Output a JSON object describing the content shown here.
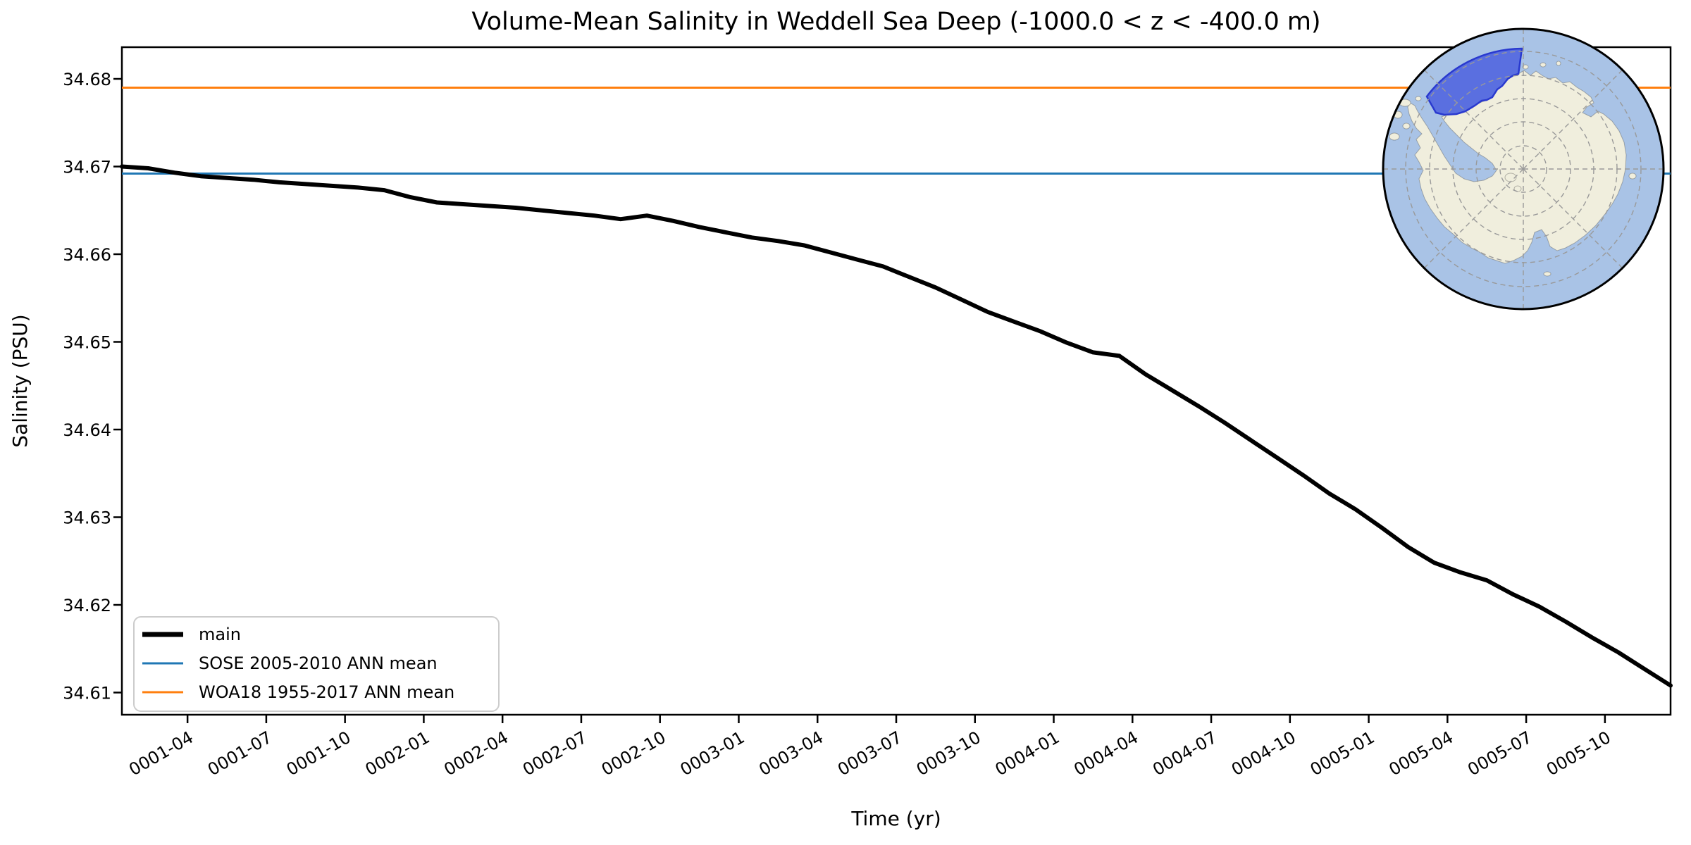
{
  "title": "Volume-Mean Salinity in Weddell Sea Deep (-1000.0 < z < -400.0 m)",
  "axes": {
    "xlabel": "Time (yr)",
    "ylabel": "Salinity (PSU)"
  },
  "legend": {
    "entries": [
      {
        "label": "main",
        "color": "#000000",
        "width": 7
      },
      {
        "label": "SOSE 2005-2010 ANN mean",
        "color": "#1f77b4",
        "width": 3
      },
      {
        "label": "WOA18 1955-2017 ANN mean",
        "color": "#ff7f0e",
        "width": 3
      }
    ]
  },
  "inset_map": {
    "ocean_color": "#a9c3e6",
    "land_color": "#f0eedd",
    "region_fill": "#4457de",
    "region_edge": "#2939cf",
    "region_opacity": 0.78
  },
  "chart_data": {
    "type": "line",
    "title": "Volume-Mean Salinity in Weddell Sea Deep (-1000.0 < z < -400.0 m)",
    "xlabel": "Time (yr)",
    "ylabel": "Salinity (PSU)",
    "grid": false,
    "legend_position": "lower left",
    "ylim": [
      34.6075,
      34.6836
    ],
    "y_tick_values": [
      34.68,
      34.67,
      34.66,
      34.65,
      34.64,
      34.63,
      34.62,
      34.61
    ],
    "x_tick_labels": [
      "0001-04",
      "0001-07",
      "0001-10",
      "0002-01",
      "0002-04",
      "0002-07",
      "0002-10",
      "0003-01",
      "0003-04",
      "0003-07",
      "0003-10",
      "0004-01",
      "0004-04",
      "0004-07",
      "0004-10",
      "0005-01",
      "0005-04",
      "0005-07",
      "0005-10"
    ],
    "x": [
      "0001-01",
      "0001-02",
      "0001-03",
      "0001-04",
      "0001-05",
      "0001-06",
      "0001-07",
      "0001-08",
      "0001-09",
      "0001-10",
      "0001-11",
      "0001-12",
      "0002-01",
      "0002-02",
      "0002-03",
      "0002-04",
      "0002-05",
      "0002-06",
      "0002-07",
      "0002-08",
      "0002-09",
      "0002-10",
      "0002-11",
      "0002-12",
      "0003-01",
      "0003-02",
      "0003-03",
      "0003-04",
      "0003-05",
      "0003-06",
      "0003-07",
      "0003-08",
      "0003-09",
      "0003-10",
      "0003-11",
      "0003-12",
      "0004-01",
      "0004-02",
      "0004-03",
      "0004-04",
      "0004-05",
      "0004-06",
      "0004-07",
      "0004-08",
      "0004-09",
      "0004-10",
      "0004-11",
      "0004-12",
      "0005-01",
      "0005-02",
      "0005-03",
      "0005-04",
      "0005-05",
      "0005-06",
      "0005-07",
      "0005-08",
      "0005-09",
      "0005-10",
      "0005-11",
      "0005-12"
    ],
    "series": [
      {
        "name": "main",
        "color": "#000000",
        "line_width": 6,
        "values": [
          34.67,
          34.6698,
          34.6693,
          34.6689,
          34.6687,
          34.6685,
          34.6682,
          34.668,
          34.6678,
          34.6676,
          34.6673,
          34.6665,
          34.6659,
          34.6657,
          34.6655,
          34.6653,
          34.665,
          34.6647,
          34.6644,
          34.664,
          34.6644,
          34.6638,
          34.6631,
          34.6625,
          34.6619,
          34.6615,
          34.661,
          34.6602,
          34.6594,
          34.6586,
          34.6574,
          34.6562,
          34.6548,
          34.6534,
          34.6523,
          34.6512,
          34.6499,
          34.6488,
          34.6484,
          34.6463,
          34.6445,
          34.6427,
          34.6408,
          34.6388,
          34.6368,
          34.6348,
          34.6327,
          34.6309,
          34.6288,
          34.6266,
          34.6248,
          34.6237,
          34.6228,
          34.6212,
          34.6198,
          34.6181,
          34.6163,
          34.6146,
          34.6127,
          34.6108
        ]
      }
    ],
    "ref_lines": [
      {
        "name": "SOSE 2005-2010 ANN mean",
        "value": 34.6692,
        "color": "#1f77b4",
        "line_width": 3
      },
      {
        "name": "WOA18 1955-2017 ANN mean",
        "value": 34.679,
        "color": "#ff7f0e",
        "line_width": 3
      }
    ]
  }
}
